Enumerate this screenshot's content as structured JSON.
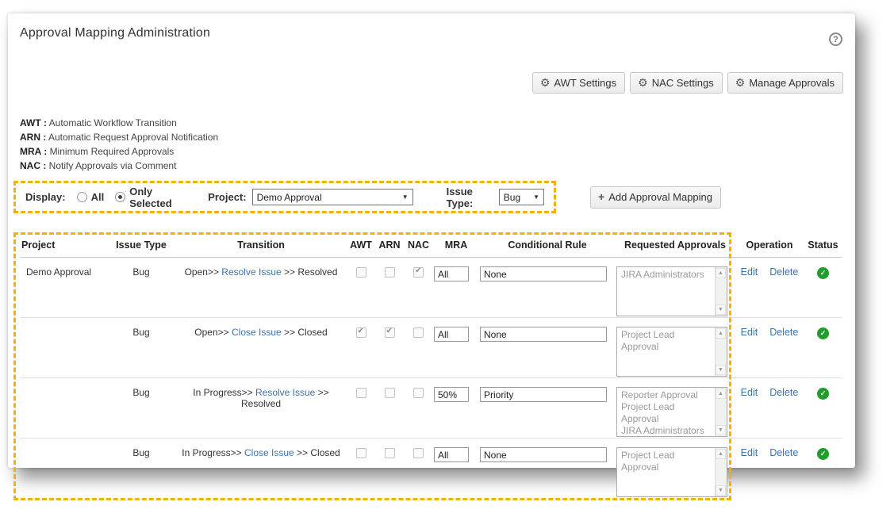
{
  "page": {
    "title": "Approval Mapping Administration",
    "help_label": "?"
  },
  "icons": {
    "gear": "⚙",
    "plus": "+",
    "dropdown_arrow": "▼",
    "scroll_up": "▲",
    "scroll_down": "▼",
    "status_check": "✓"
  },
  "toolbar": {
    "buttons": [
      {
        "label": "AWT Settings"
      },
      {
        "label": "NAC Settings"
      },
      {
        "label": "Manage Approvals"
      }
    ]
  },
  "legend": [
    {
      "abbr": "AWT :",
      "desc": "Automatic Workflow Transition"
    },
    {
      "abbr": "ARN :",
      "desc": "Automatic Request Approval Notification"
    },
    {
      "abbr": "MRA :",
      "desc": "Minimum Required Approvals"
    },
    {
      "abbr": "NAC :",
      "desc": "Notify Approvals via Comment"
    }
  ],
  "filter": {
    "display_label": "Display:",
    "radios": [
      {
        "label": "All",
        "selected": false
      },
      {
        "label": "Only Selected",
        "selected": true
      }
    ],
    "project_label": "Project:",
    "project_value": "Demo Approval",
    "issue_type_label": "Issue Type:",
    "issue_type_value": "Bug",
    "add_button_label": "Add Approval Mapping"
  },
  "table": {
    "headers": [
      "Project",
      "Issue Type",
      "Transition",
      "AWT",
      "ARN",
      "NAC",
      "MRA",
      "Conditional Rule",
      "Requested Approvals",
      "Operation",
      "Status"
    ],
    "rows": [
      {
        "project": "Demo Approval",
        "issue_type": "Bug",
        "transition_pre": "Open>>",
        "transition_link": "Resolve Issue",
        "transition_post": ">> Resolved",
        "awt": false,
        "arn": false,
        "nac": true,
        "mra": "All",
        "conditional_rule": "None",
        "requested_approvals": [
          "JIRA Administrators"
        ],
        "edit_label": "Edit",
        "delete_label": "Delete",
        "status": "ok"
      },
      {
        "project": "",
        "issue_type": "Bug",
        "transition_pre": "Open>>",
        "transition_link": "Close Issue",
        "transition_post": ">> Closed",
        "awt": true,
        "arn": true,
        "nac": false,
        "mra": "All",
        "conditional_rule": "None",
        "requested_approvals": [
          "Project Lead Approval"
        ],
        "edit_label": "Edit",
        "delete_label": "Delete",
        "status": "ok"
      },
      {
        "project": "",
        "issue_type": "Bug",
        "transition_pre": "In Progress>>",
        "transition_link": "Resolve Issue",
        "transition_post": ">> Resolved",
        "awt": false,
        "arn": false,
        "nac": false,
        "mra": "50%",
        "conditional_rule": "Priority",
        "requested_approvals": [
          "Reporter Approval",
          "Project Lead Approval",
          "JIRA Administrators"
        ],
        "edit_label": "Edit",
        "delete_label": "Delete",
        "status": "ok"
      },
      {
        "project": "",
        "issue_type": "Bug",
        "transition_pre": "In Progress>>",
        "transition_link": "Close Issue",
        "transition_post": ">> Closed",
        "awt": false,
        "arn": false,
        "nac": false,
        "mra": "All",
        "conditional_rule": "None",
        "requested_approvals": [
          "Project Lead Approval"
        ],
        "edit_label": "Edit",
        "delete_label": "Delete",
        "status": "ok"
      }
    ]
  },
  "colors": {
    "accent_dashed": "#F2B200",
    "link": "#3B73AF",
    "status_green": "#1F9E2C"
  }
}
